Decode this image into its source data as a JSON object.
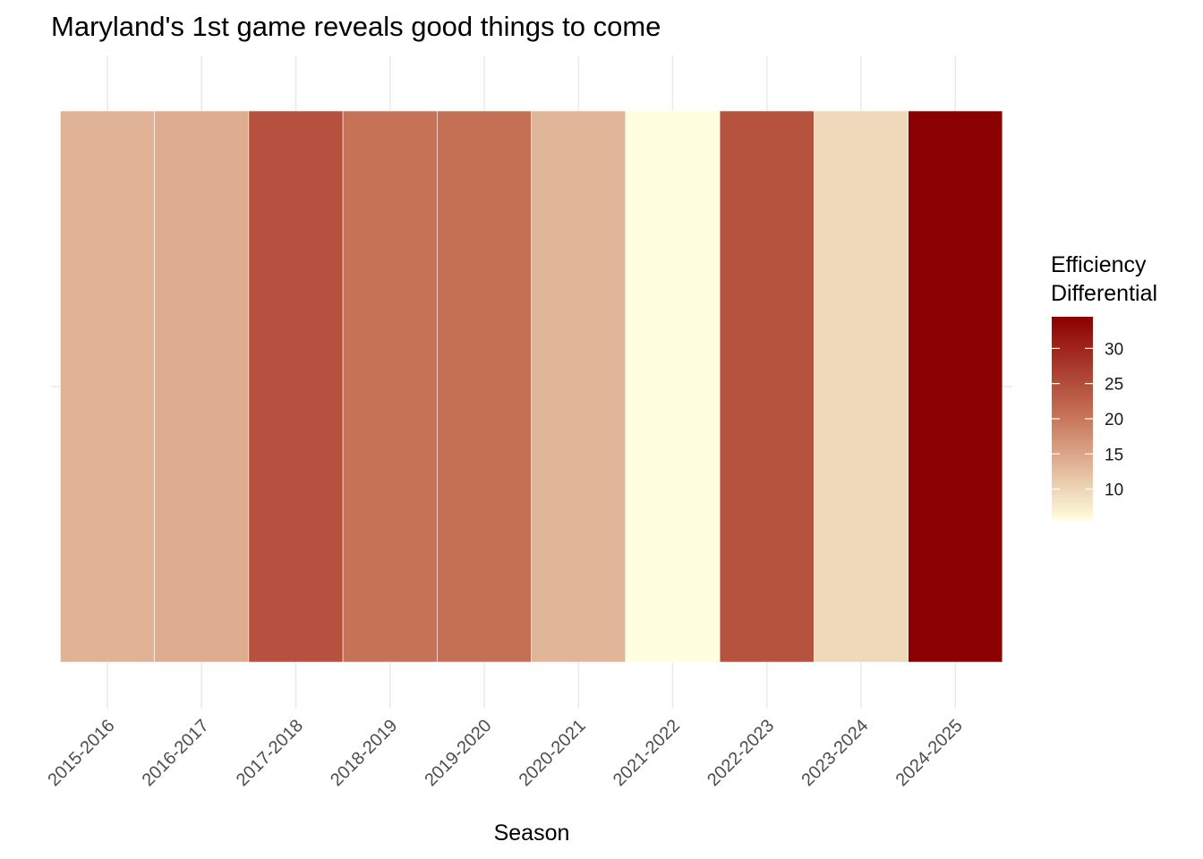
{
  "chart_data": {
    "type": "heatmap",
    "title": "Maryland's 1st game reveals good things to come",
    "xlabel": "Season",
    "ylabel": "",
    "categories": [
      "2015-2016",
      "2016-2017",
      "2017-2018",
      "2018-2019",
      "2019-2020",
      "2020-2021",
      "2021-2022",
      "2022-2023",
      "2023-2024",
      "2024-2025"
    ],
    "series": [
      {
        "values": [
          13.5,
          14.3,
          24.5,
          20.5,
          20.8,
          13.3,
          5.5,
          24.3,
          9.5,
          34.5
        ]
      }
    ],
    "colorbar": {
      "title_lines": [
        "Efficiency",
        "Differential"
      ],
      "ticks": [
        10,
        15,
        20,
        25,
        30
      ],
      "range": [
        5.5,
        34.5
      ],
      "colors": [
        "#FFFFE0",
        "#C8765A",
        "#8B0000"
      ]
    },
    "grid": true,
    "legend_position": "right"
  }
}
